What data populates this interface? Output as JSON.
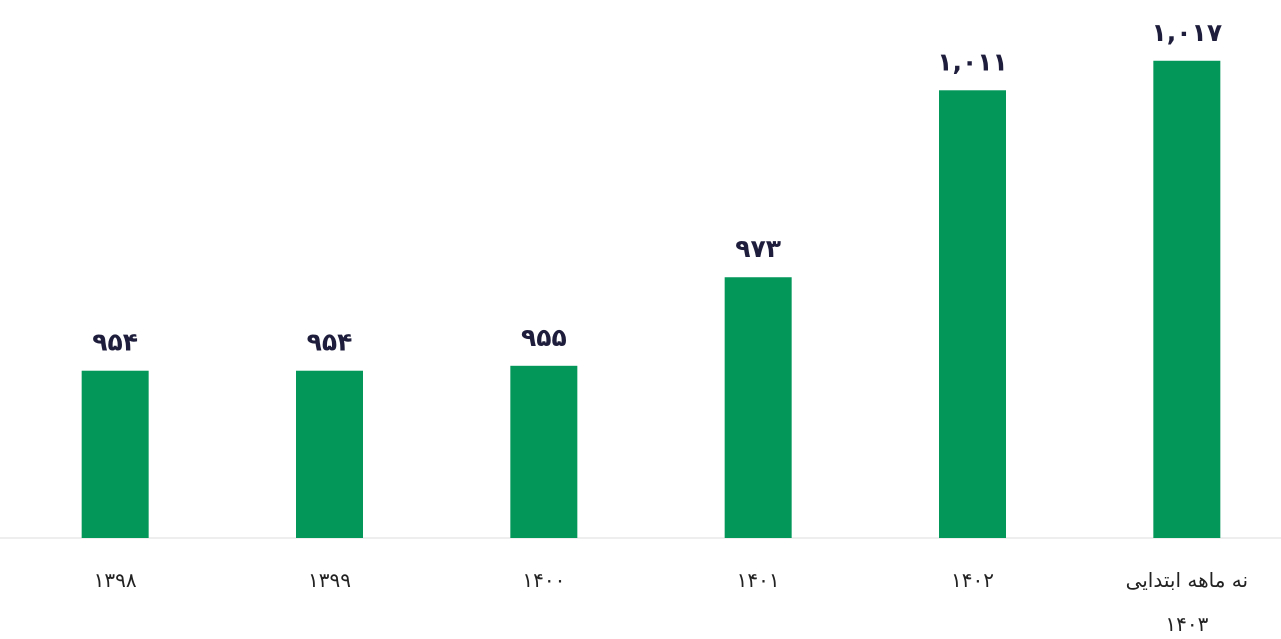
{
  "chart_data": {
    "type": "bar",
    "categories": [
      "۱۳۹۸",
      "۱۳۹۹",
      "۱۴۰۰",
      "۱۴۰۱",
      "۱۴۰۲",
      "نه ماهه ابتدایی ۱۴۰۳"
    ],
    "values": [
      954,
      954,
      955,
      973,
      1011,
      1017
    ],
    "value_labels": [
      "۹۵۴",
      "۹۵۴",
      "۹۵۵",
      "۹۷۳",
      "۱,۰۱۱",
      "۱,۰۱۷"
    ],
    "color": "#03975a",
    "ylim": [
      920,
      1020
    ]
  }
}
